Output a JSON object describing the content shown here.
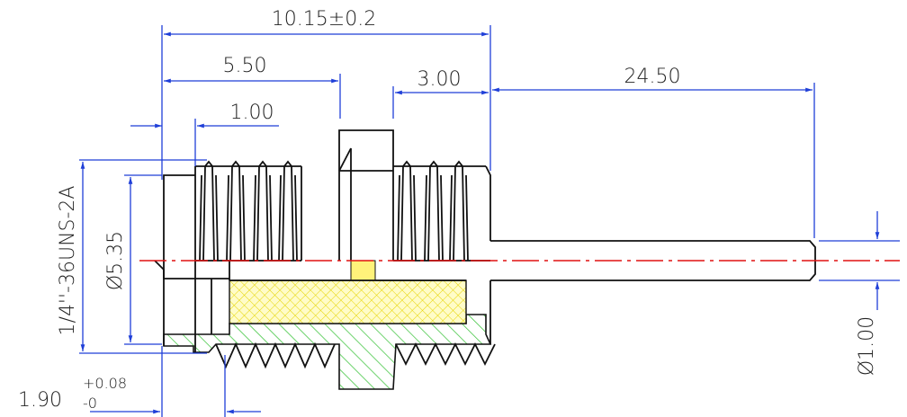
{
  "dimensions": {
    "overall_length": "10.15±0.2",
    "flange_to_hex": "5.50",
    "rear_thread": "3.00",
    "pin_length": "24.50",
    "flange_width": "1.00",
    "thread_spec": "1/4''-36UNS-2A",
    "body_diameter": "Ø5.35",
    "pin_diameter": "Ø1.00",
    "undercut": {
      "nominal": "1.90",
      "upper_tol": "+0.08",
      "lower_tol": "-0"
    }
  }
}
